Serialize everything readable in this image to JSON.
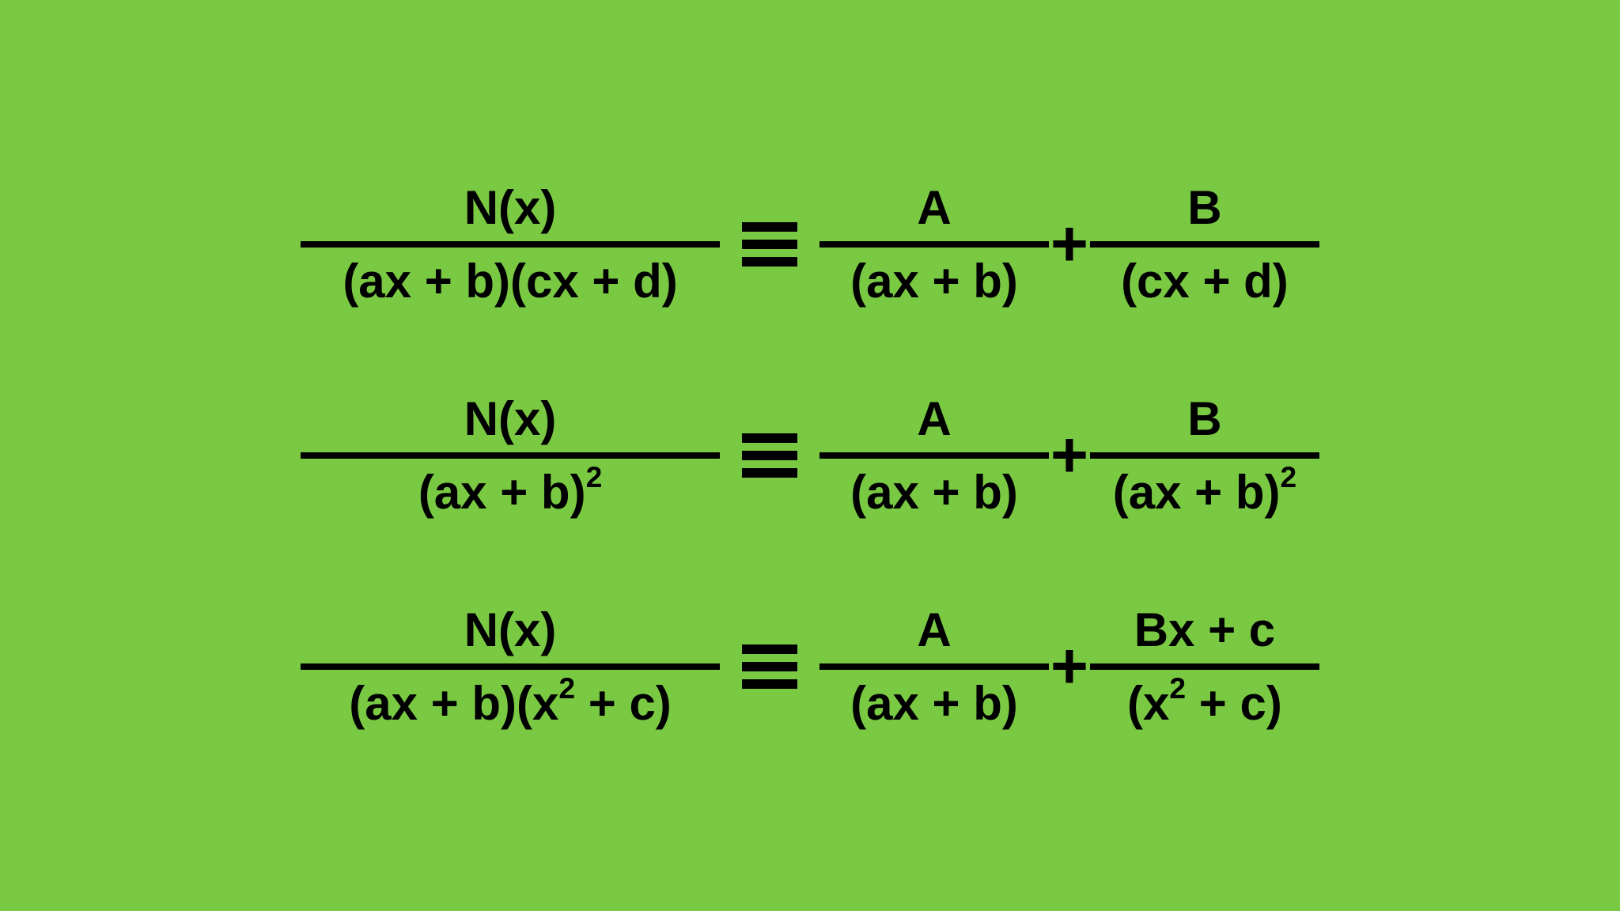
{
  "style": {
    "background_color": "#7ac943",
    "text_color": "#000000",
    "bar_color": "#000000",
    "font_size_main": 60,
    "font_weight": "bold",
    "bar_thickness": 8,
    "identity_bar_thickness": 12,
    "identity_bar_width": 70,
    "identity_bar_gap": 10
  },
  "equations": [
    {
      "lhs": {
        "numerator": "N(x)",
        "denominator": "(ax + b)(cx + d)"
      },
      "rhs": [
        {
          "numerator": "A",
          "denominator": "(ax + b)"
        },
        {
          "numerator": "B",
          "denominator": "(cx + d)"
        }
      ]
    },
    {
      "lhs": {
        "numerator": "N(x)",
        "denominator_html": "(ax + b)<span class=\"sup\">2</span>"
      },
      "rhs": [
        {
          "numerator": "A",
          "denominator": "(ax + b)"
        },
        {
          "numerator": "B",
          "denominator_html": "(ax + b)<span class=\"sup\">2</span>"
        }
      ]
    },
    {
      "lhs": {
        "numerator": "N(x)",
        "denominator_html": "(ax + b)(x<span class=\"sup\">2</span> + c)"
      },
      "rhs": [
        {
          "numerator": "A",
          "denominator": "(ax + b)"
        },
        {
          "numerator": "Bx + c",
          "denominator_html": "(x<span class=\"sup\">2</span> + c)"
        }
      ]
    }
  ],
  "operators": {
    "plus": "+"
  }
}
